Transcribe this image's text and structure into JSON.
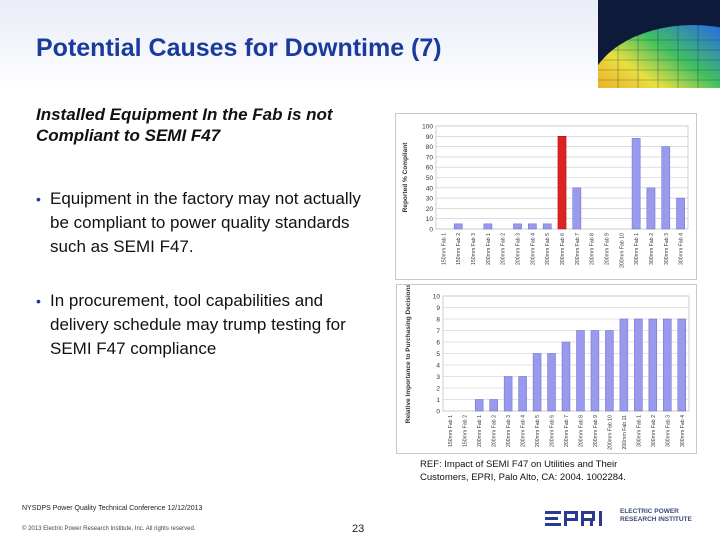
{
  "slide": {
    "title": "Potential Causes for Downtime (7)",
    "subtitle": "Installed Equipment In the Fab is not Compliant to SEMI F47",
    "bullets": [
      "Equipment in the factory may not actually be compliant to power quality standards such as SEMI F47.",
      "In procurement, tool capabilities and delivery schedule may trump testing for SEMI F47 compliance"
    ],
    "reference": "REF: Impact of SEMI F47 on Utilities and Their Customers, EPRI, Palo Alto, CA: 2004. 1002284.",
    "footer_conference": "NYSDPS Power Quality Technical Conference 12/12/2013",
    "footer_copyright": "© 2013 Electric Power Research Institute, Inc. All rights reserved.",
    "page_number": "23",
    "logo": {
      "name": "EPRI",
      "tagline_line1": "ELECTRIC POWER",
      "tagline_line2": "RESEARCH INSTITUTE"
    }
  },
  "colors": {
    "title": "#1a3a9c",
    "bar": "#9999ee",
    "bar_highlight": "#dd2222"
  },
  "chart_data": [
    {
      "type": "bar",
      "title": "",
      "ylabel": "Reported % Compliant",
      "xlabel": "",
      "ylim": [
        0,
        100
      ],
      "yticks": [
        0,
        10,
        20,
        30,
        40,
        50,
        60,
        70,
        80,
        90,
        100
      ],
      "categories": [
        "150mm Fab 1",
        "150mm Fab 2",
        "150mm Fab 3",
        "200mm Fab 1",
        "200mm Fab 2",
        "200mm Fab 3",
        "200mm Fab 4",
        "200mm Fab 5",
        "200mm Fab 6",
        "200mm Fab 7",
        "200mm Fab 8",
        "200mm Fab 9",
        "200mm Fab 10",
        "300mm Fab 1",
        "300mm Fab 2",
        "300mm Fab 3",
        "300mm Fab 4"
      ],
      "values": [
        0,
        5,
        0,
        5,
        0,
        5,
        5,
        5,
        90,
        40,
        0,
        0,
        0,
        88,
        40,
        80,
        30
      ],
      "highlight_index": 8
    },
    {
      "type": "bar",
      "title": "",
      "ylabel": "Relative Importance to Purchasing Decisions",
      "xlabel": "",
      "ylim": [
        0,
        10
      ],
      "yticks": [
        0,
        1,
        2,
        3,
        4,
        5,
        6,
        7,
        8,
        9,
        10
      ],
      "categories": [
        "150mm Fab 1",
        "150mm Fab 2",
        "200mm Fab 1",
        "200mm Fab 2",
        "200mm Fab 3",
        "200mm Fab 4",
        "200mm Fab 5",
        "200mm Fab 6",
        "200mm Fab 7",
        "200mm Fab 8",
        "200mm Fab 9",
        "200mm Fab 10",
        "200mm Fab 11",
        "300mm Fab 1",
        "300mm Fab 2",
        "300mm Fab 3",
        "300mm Fab 4"
      ],
      "values": [
        0,
        0,
        1,
        1,
        3,
        3,
        5,
        5,
        6,
        7,
        7,
        7,
        8,
        8,
        8,
        8,
        8
      ]
    }
  ]
}
